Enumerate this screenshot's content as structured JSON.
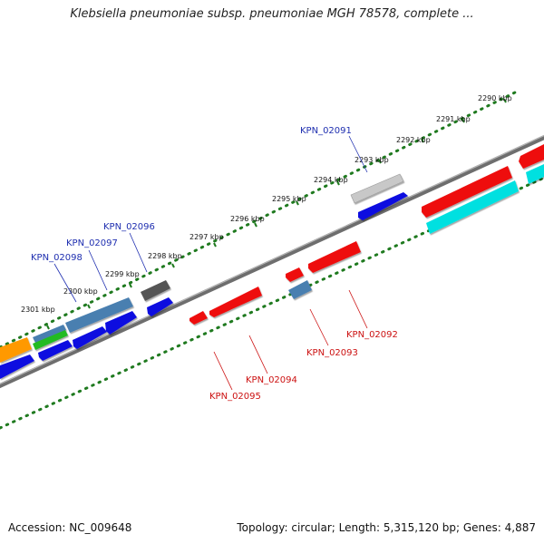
{
  "title": "Klebsiella pneumoniae subsp. pneumoniae MGH 78578, complete ...",
  "footer": {
    "accession": "Accession: NC_009648",
    "summary": "Topology: circular; Length: 5,315,120 bp; Genes: 4,887"
  },
  "colors": {
    "backbone": "#7a7a7a",
    "tick": "#1f7a1f",
    "forward_label": "#1f2fb0",
    "reverse_label": "#cc1111"
  },
  "ticks": [
    {
      "label": "2290 kbp",
      "pos": 2290
    },
    {
      "label": "2291 kbp",
      "pos": 2291
    },
    {
      "label": "2292 kbp",
      "pos": 2292
    },
    {
      "label": "2293 kbp",
      "pos": 2293
    },
    {
      "label": "2294 kbp",
      "pos": 2294
    },
    {
      "label": "2295 kbp",
      "pos": 2295
    },
    {
      "label": "2296 kbp",
      "pos": 2296
    },
    {
      "label": "2297 kbp",
      "pos": 2297
    },
    {
      "label": "2298 kbp",
      "pos": 2298
    },
    {
      "label": "2299 kbp",
      "pos": 2299
    },
    {
      "label": "2300 kbp",
      "pos": 2300
    },
    {
      "label": "2301 kbp",
      "pos": 2301
    }
  ],
  "gene_labels": [
    {
      "text": "KPN_02091",
      "strand": "forward"
    },
    {
      "text": "KPN_02096",
      "strand": "forward"
    },
    {
      "text": "KPN_02097",
      "strand": "forward"
    },
    {
      "text": "KPN_02098",
      "strand": "forward"
    },
    {
      "text": "KPN_02092",
      "strand": "reverse"
    },
    {
      "text": "KPN_02093",
      "strand": "reverse"
    },
    {
      "text": "KPN_02094",
      "strand": "reverse"
    },
    {
      "text": "KPN_02095",
      "strand": "reverse"
    }
  ],
  "features": [
    {
      "type": "forward",
      "color": "#c8c8c8",
      "start": 2293.1,
      "end": 2294.0
    },
    {
      "type": "forward",
      "color": "#1010e0",
      "start": 2293.1,
      "end": 2294.0
    },
    {
      "type": "forward",
      "color": "#555555",
      "start": 2297.9,
      "end": 2298.2
    },
    {
      "type": "forward",
      "color": "#1010e0",
      "start": 2297.9,
      "end": 2298.2
    },
    {
      "type": "forward",
      "color": "#4a7fb0",
      "start": 2298.4,
      "end": 2300.0
    },
    {
      "type": "forward",
      "color": "#1010e0",
      "start": 2299.3,
      "end": 2299.7
    },
    {
      "type": "forward",
      "color": "#1010e0",
      "start": 2299.8,
      "end": 2300.2
    },
    {
      "type": "forward",
      "color": "#4a7fb0",
      "start": 2300.5,
      "end": 2300.9
    },
    {
      "type": "forward",
      "color": "#22bb22",
      "start": 2300.5,
      "end": 2300.9
    },
    {
      "type": "forward",
      "color": "#1010e0",
      "start": 2300.5,
      "end": 2300.9
    },
    {
      "type": "forward",
      "color": "#ff9900",
      "start": 2301.2,
      "end": 2301.6
    },
    {
      "type": "forward",
      "color": "#1010e0",
      "start": 2301.2,
      "end": 2301.6
    },
    {
      "type": "reverse",
      "color": "#ee1111",
      "start": 2290.0,
      "end": 2290.6
    },
    {
      "type": "reverse",
      "color": "#00e0e0",
      "start": 2290.0,
      "end": 2290.4
    },
    {
      "type": "reverse",
      "color": "#ee1111",
      "start": 2290.9,
      "end": 2292.1
    },
    {
      "type": "reverse",
      "color": "#00e0e0",
      "start": 2290.9,
      "end": 2292.1
    },
    {
      "type": "reverse",
      "color": "#ee1111",
      "start": 2294.2,
      "end": 2295.0
    },
    {
      "type": "reverse",
      "color": "#ee1111",
      "start": 2295.1,
      "end": 2295.4
    },
    {
      "type": "reverse",
      "color": "#4a7fb0",
      "start": 2295.0,
      "end": 2295.4
    },
    {
      "type": "reverse",
      "color": "#ee1111",
      "start": 2296.1,
      "end": 2296.9
    },
    {
      "type": "reverse",
      "color": "#ee1111",
      "start": 2297.0,
      "end": 2297.2
    }
  ]
}
